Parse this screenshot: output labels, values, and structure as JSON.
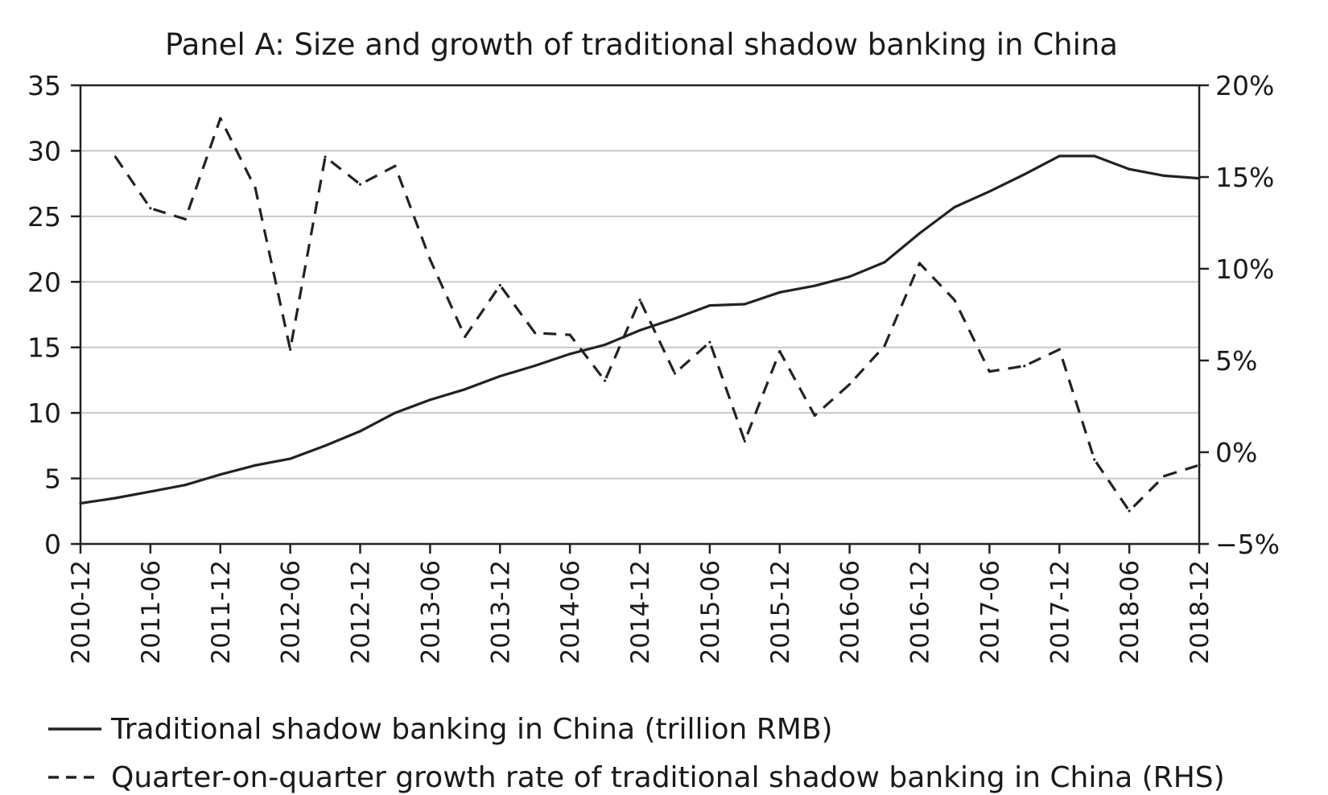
{
  "chart_data": {
    "type": "line",
    "title": "Panel A: Size and growth of traditional shadow banking in China",
    "xlabel": "",
    "ylabel": "",
    "y2label": "",
    "x_tick_labels": [
      "2010-12",
      "2011-06",
      "2011-12",
      "2012-06",
      "2012-12",
      "2013-06",
      "2013-12",
      "2014-06",
      "2014-12",
      "2015-06",
      "2015-12",
      "2016-06",
      "2016-12",
      "2017-06",
      "2017-12",
      "2018-06",
      "2018-12"
    ],
    "y_ticks": [
      0,
      5,
      10,
      15,
      20,
      25,
      30,
      35
    ],
    "y_tick_labels": [
      "0",
      "5",
      "10",
      "15",
      "20",
      "25",
      "30",
      "35"
    ],
    "ylim": [
      0,
      35
    ],
    "y2_ticks": [
      -5,
      0,
      5,
      10,
      15,
      20
    ],
    "y2_tick_labels": [
      "−5%",
      "0%",
      "5%",
      "10%",
      "15%",
      "20%"
    ],
    "y2lim": [
      -5,
      20
    ],
    "grid": "horizontal",
    "legend_position": "bottom",
    "series": [
      {
        "name": "Traditional shadow banking in China (trillion RMB)",
        "axis": "left",
        "style": "solid",
        "x": [
          "2010-12",
          "2011-03",
          "2011-06",
          "2011-09",
          "2011-12",
          "2012-03",
          "2012-06",
          "2012-09",
          "2012-12",
          "2013-03",
          "2013-06",
          "2013-09",
          "2013-12",
          "2014-03",
          "2014-06",
          "2014-09",
          "2014-12",
          "2015-03",
          "2015-06",
          "2015-09",
          "2015-12",
          "2016-03",
          "2016-06",
          "2016-09",
          "2016-12",
          "2017-03",
          "2017-06",
          "2017-09",
          "2017-12",
          "2018-03",
          "2018-06",
          "2018-09",
          "2018-12"
        ],
        "values": [
          3.1,
          3.5,
          4.0,
          4.5,
          5.3,
          6.0,
          6.5,
          7.5,
          8.6,
          10.0,
          11.0,
          11.8,
          12.8,
          13.6,
          14.5,
          15.2,
          16.3,
          17.2,
          18.2,
          18.3,
          19.2,
          19.7,
          20.4,
          21.5,
          23.7,
          25.7,
          26.9,
          28.2,
          29.6,
          29.6,
          28.6,
          28.1,
          27.9
        ]
      },
      {
        "name": "Quarter-on-quarter growth rate of traditional shadow banking in China (RHS)",
        "axis": "right",
        "style": "dashed",
        "x": [
          "2011-03",
          "2011-06",
          "2011-09",
          "2011-12",
          "2012-03",
          "2012-06",
          "2012-09",
          "2012-12",
          "2013-03",
          "2013-06",
          "2013-09",
          "2013-12",
          "2014-03",
          "2014-06",
          "2014-09",
          "2014-12",
          "2015-03",
          "2015-06",
          "2015-09",
          "2015-12",
          "2016-03",
          "2016-06",
          "2016-09",
          "2016-12",
          "2017-03",
          "2017-06",
          "2017-09",
          "2017-12",
          "2018-03",
          "2018-06",
          "2018-09",
          "2018-12"
        ],
        "values": [
          16.1,
          13.3,
          12.7,
          18.2,
          14.4,
          5.6,
          16.1,
          14.6,
          15.6,
          10.5,
          6.3,
          9.1,
          6.5,
          6.4,
          3.9,
          8.3,
          4.3,
          6.0,
          0.6,
          5.5,
          2.0,
          3.7,
          5.8,
          10.3,
          8.3,
          4.4,
          4.7,
          5.6,
          -0.4,
          -3.2,
          -1.3,
          -0.7
        ]
      }
    ]
  }
}
